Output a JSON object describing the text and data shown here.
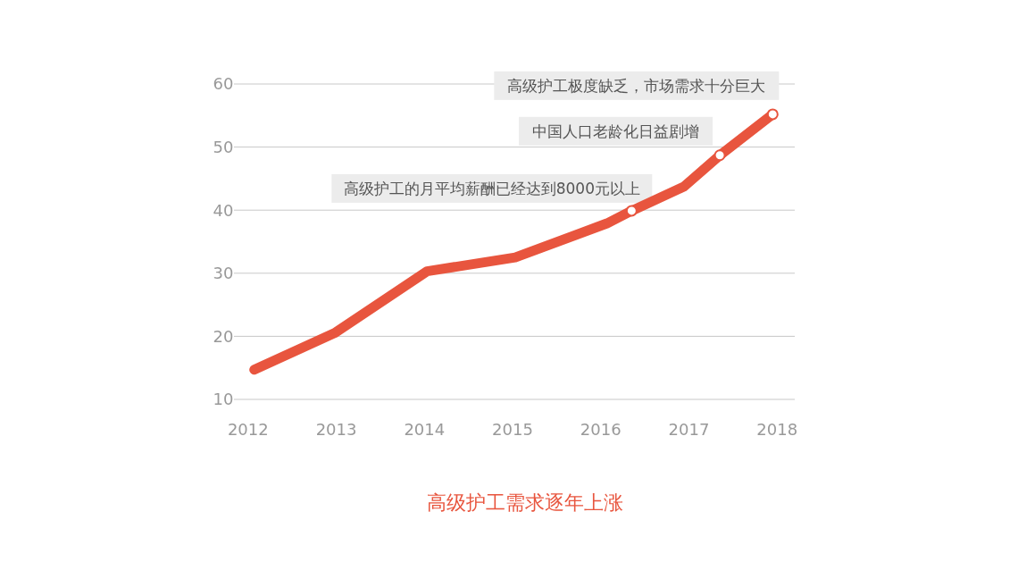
{
  "chart_data": {
    "type": "line",
    "title": "高级护工需求逐年上涨",
    "xlim": [
      2011.84,
      2018.2
    ],
    "xticks": [
      2012,
      2013,
      2014,
      2015,
      2016,
      2017,
      2018
    ],
    "ylim": [
      10,
      60
    ],
    "yticks": [
      10,
      20,
      30,
      40,
      50,
      60
    ],
    "grid": "y",
    "legend": false,
    "series": [
      {
        "color": "#e8553e",
        "x": [
          2012.07,
          2012.98,
          2014.03,
          2015.03,
          2016.07,
          2016.35,
          2016.94,
          2017.35,
          2017.95
        ],
        "values": [
          14.7,
          20.5,
          30.3,
          32.5,
          37.9,
          39.9,
          43.7,
          48.7,
          55.2
        ]
      },
      {
        "type": "scatter",
        "color": "#e8553e",
        "marker": "circle",
        "x": [
          2016.35,
          2017.35,
          2017.95
        ],
        "values": [
          39.9,
          48.7,
          55.2
        ]
      }
    ],
    "annotations": [
      {
        "text": "高级护工的月平均薪酬已经达到8000元以上",
        "x": 2016.35,
        "y": 39.9
      },
      {
        "text": "中国人口老龄化日益剧增",
        "x": 2017.35,
        "y": 48.7
      },
      {
        "text": "高级护工极度缺乏，市场需求十分巨大",
        "x": 2017.95,
        "y": 55.2
      }
    ]
  }
}
